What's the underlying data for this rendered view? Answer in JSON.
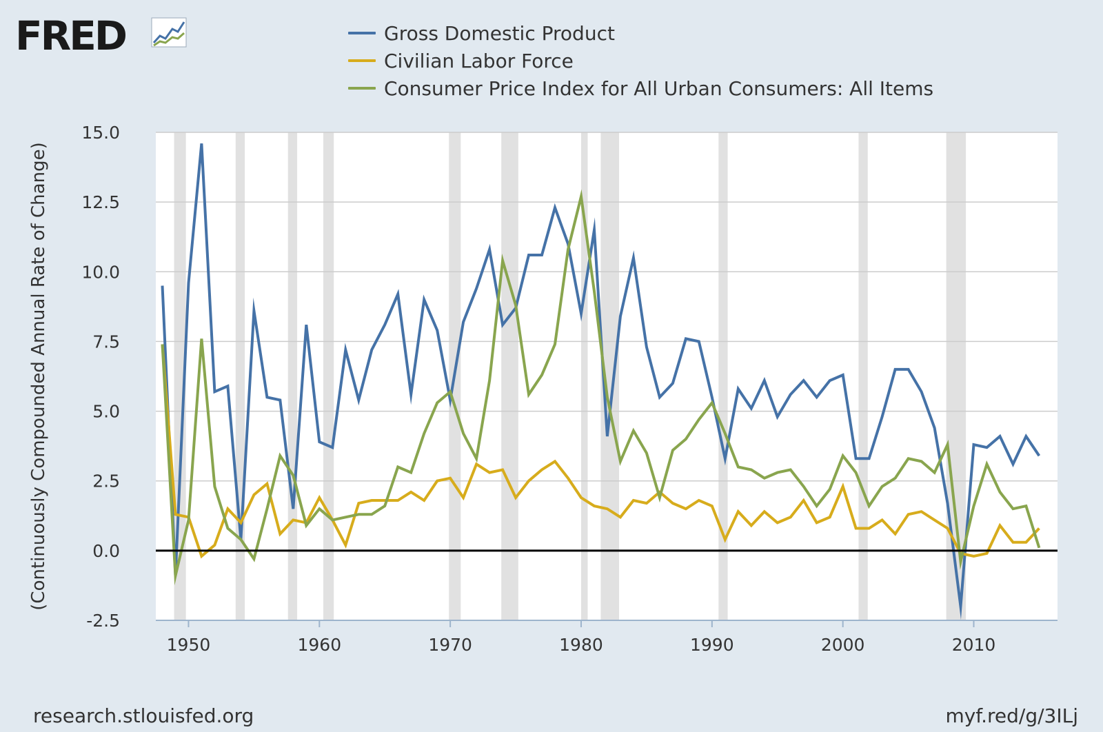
{
  "logo": {
    "text": "FRED",
    "icon": "fred-chart-icon"
  },
  "footer": {
    "source": "research.stlouisfed.org",
    "short_url": "myf.red/g/3ILj"
  },
  "chart_data": {
    "type": "line",
    "title": "",
    "xlabel": "",
    "ylabel": "(Continuously Compounded Annual Rate of Change)",
    "xlim": [
      1947.5,
      2016.4
    ],
    "ylim": [
      -2.5,
      15.0
    ],
    "y_ticks": [
      -2.5,
      0.0,
      2.5,
      5.0,
      7.5,
      10.0,
      12.5,
      15.0
    ],
    "y_tick_labels": [
      "-2.5",
      "0.0",
      "2.5",
      "5.0",
      "7.5",
      "10.0",
      "12.5",
      "15.0"
    ],
    "x_ticks": [
      1950,
      1960,
      1970,
      1980,
      1990,
      2000,
      2010
    ],
    "x_tick_labels": [
      "1950",
      "1960",
      "1970",
      "1980",
      "1990",
      "2000",
      "2010"
    ],
    "grid": "horizontal",
    "legend_position": "top",
    "recessions": [
      [
        1948.9,
        1949.8
      ],
      [
        1953.6,
        1954.3
      ],
      [
        1957.6,
        1958.3
      ],
      [
        1960.3,
        1961.1
      ],
      [
        1969.9,
        1970.8
      ],
      [
        1973.9,
        1975.2
      ],
      [
        1980.0,
        1980.5
      ],
      [
        1981.5,
        1982.9
      ],
      [
        1990.5,
        1991.2
      ],
      [
        2001.2,
        2001.9
      ],
      [
        2007.9,
        2009.4
      ]
    ],
    "colors": {
      "background": "#ffffff",
      "grid": "#cccccc",
      "zero_line": "#000000",
      "recession": "#e1e1e1",
      "axis": "#9db4cc",
      "tick_text": "#333333"
    },
    "x": [
      1948,
      1949,
      1950,
      1951,
      1952,
      1953,
      1954,
      1955,
      1956,
      1957,
      1958,
      1959,
      1960,
      1961,
      1962,
      1963,
      1964,
      1965,
      1966,
      1967,
      1968,
      1969,
      1970,
      1971,
      1972,
      1973,
      1974,
      1975,
      1976,
      1977,
      1978,
      1979,
      1980,
      1981,
      1982,
      1983,
      1984,
      1985,
      1986,
      1987,
      1988,
      1989,
      1990,
      1991,
      1992,
      1993,
      1994,
      1995,
      1996,
      1997,
      1998,
      1999,
      2000,
      2001,
      2002,
      2003,
      2004,
      2005,
      2006,
      2007,
      2008,
      2009,
      2010,
      2011,
      2012,
      2013,
      2014,
      2015
    ],
    "series": [
      {
        "name": "Gross Domestic Product",
        "color": "#4572a7",
        "values": [
          9.5,
          -0.9,
          9.6,
          14.6,
          5.7,
          5.9,
          0.4,
          8.6,
          5.5,
          5.4,
          1.5,
          8.1,
          3.9,
          3.7,
          7.2,
          5.4,
          7.2,
          8.1,
          9.2,
          5.6,
          9.0,
          7.9,
          5.4,
          8.2,
          9.4,
          10.8,
          8.1,
          8.7,
          10.6,
          10.6,
          12.3,
          11.0,
          8.5,
          11.5,
          4.1,
          8.4,
          10.5,
          7.3,
          5.5,
          6.0,
          7.6,
          7.5,
          5.5,
          3.3,
          5.8,
          5.1,
          6.1,
          4.8,
          5.6,
          6.1,
          5.5,
          6.1,
          6.3,
          3.3,
          3.3,
          4.8,
          6.5,
          6.5,
          5.7,
          4.4,
          1.7,
          -2.0,
          3.8,
          3.7,
          4.1,
          3.1,
          4.1,
          3.4
        ]
      },
      {
        "name": "Civilian Labor Force",
        "color": "#d7ac1c",
        "values": [
          7.4,
          1.3,
          1.2,
          -0.2,
          0.2,
          1.5,
          1.0,
          2.0,
          2.4,
          0.6,
          1.1,
          1.0,
          1.9,
          1.1,
          0.2,
          1.7,
          1.8,
          1.8,
          1.8,
          2.1,
          1.8,
          2.5,
          2.6,
          1.9,
          3.1,
          2.8,
          2.9,
          1.9,
          2.5,
          2.9,
          3.2,
          2.6,
          1.9,
          1.6,
          1.5,
          1.2,
          1.8,
          1.7,
          2.1,
          1.7,
          1.5,
          1.8,
          1.6,
          0.4,
          1.4,
          0.9,
          1.4,
          1.0,
          1.2,
          1.8,
          1.0,
          1.2,
          2.3,
          0.8,
          0.8,
          1.1,
          0.6,
          1.3,
          1.4,
          1.1,
          0.8,
          -0.1,
          -0.2,
          -0.1,
          0.9,
          0.3,
          0.3,
          0.8
        ]
      },
      {
        "name": "Consumer Price Index for All Urban Consumers: All Items",
        "color": "#89a54e",
        "values": [
          7.4,
          -0.9,
          1.1,
          7.6,
          2.3,
          0.8,
          0.4,
          -0.3,
          1.5,
          3.4,
          2.7,
          0.9,
          1.5,
          1.1,
          1.2,
          1.3,
          1.3,
          1.6,
          3.0,
          2.8,
          4.2,
          5.3,
          5.7,
          4.2,
          3.3,
          6.1,
          10.4,
          8.8,
          5.6,
          6.3,
          7.4,
          10.8,
          12.7,
          9.3,
          5.5,
          3.2,
          4.3,
          3.5,
          1.9,
          3.6,
          4.0,
          4.7,
          5.3,
          4.2,
          3.0,
          2.9,
          2.6,
          2.8,
          2.9,
          2.3,
          1.6,
          2.2,
          3.4,
          2.8,
          1.6,
          2.3,
          2.6,
          3.3,
          3.2,
          2.8,
          3.8,
          -0.4,
          1.6,
          3.1,
          2.1,
          1.5,
          1.6,
          0.1
        ]
      }
    ]
  }
}
